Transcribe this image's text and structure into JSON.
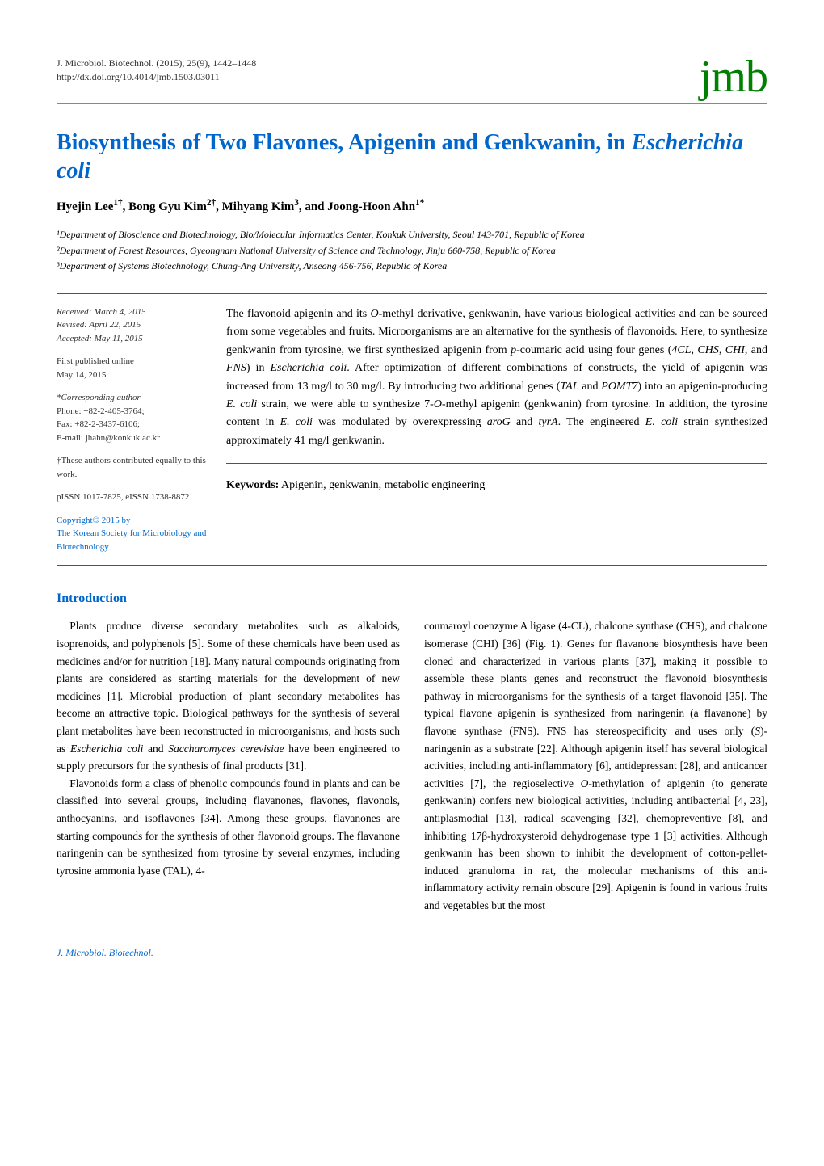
{
  "journal": {
    "citation": "J. Microbiol. Biotechnol. (2015), 25(9), 1442–1448",
    "doi": "http://dx.doi.org/10.4014/jmb.1503.03011",
    "logo_text": "jmb",
    "logo_color": "#008000"
  },
  "title_prefix": "Biosynthesis of Two Flavones, Apigenin and Genkwanin, in ",
  "title_italic": "Escherichia coli",
  "title_color": "#0066cc",
  "authors_html": "Hyejin Lee<sup>1†</sup>, Bong Gyu Kim<sup>2†</sup>, Mihyang Kim<sup>3</sup>, and Joong-Hoon Ahn<sup>1*</sup>",
  "affiliations": [
    "¹Department of Bioscience and Biotechnology, Bio/Molecular Informatics Center, Konkuk University, Seoul 143-701, Republic of Korea",
    "²Department of Forest Resources, Gyeongnam National University of Science and Technology, Jinju 660-758, Republic of Korea",
    "³Department of Systems Biotechnology, Chung-Ang University, Anseong 456-756, Republic of Korea"
  ],
  "meta": {
    "received": "Received: March 4, 2015",
    "revised": "Revised: April 22, 2015",
    "accepted": "Accepted: May 11, 2015",
    "first_published_label": "First published online",
    "first_published_date": "May 14, 2015",
    "corresponding_label": "*Corresponding author",
    "phone": "Phone: +82-2-405-3764;",
    "fax": "Fax: +82-2-3437-6106;",
    "email": "E-mail: jhahn@konkuk.ac.kr",
    "equal_contrib": "†These authors contributed equally to this work.",
    "issn": "pISSN 1017-7825, eISSN 1738-8872",
    "copyright_line1": "Copyright© 2015 by",
    "copyright_line2": "The Korean Society for Microbiology and Biotechnology"
  },
  "abstract_html": "The flavonoid apigenin and its <i>O</i>-methyl derivative, genkwanin, have various biological activities and can be sourced from some vegetables and fruits. Microorganisms are an alternative for the synthesis of flavonoids. Here, to synthesize genkwanin from tyrosine, we first synthesized apigenin from <i>p</i>-coumaric acid using four genes (<i>4CL</i>, <i>CHS</i>, <i>CHI</i>, and <i>FNS</i>) in <i>Escherichia coli</i>. After optimization of different combinations of constructs, the yield of apigenin was increased from 13 mg/l to 30 mg/l. By introducing two additional genes (<i>TAL</i> and <i>POMT7</i>) into an apigenin-producing <i>E. coli</i> strain, we were able to synthesize 7-<i>O</i>-methyl apigenin (genkwanin) from tyrosine. In addition, the tyrosine content in <i>E. coli</i> was modulated by overexpressing <i>aroG</i> and <i>tyrA</i>. The engineered <i>E. coli</i> strain synthesized approximately 41 mg/l genkwanin.",
  "keywords_label": "Keywords:",
  "keywords_text": " Apigenin, genkwanin, metabolic engineering",
  "section_heading": "Introduction",
  "body_left_html": "<p>Plants produce diverse secondary metabolites such as alkaloids, isoprenoids, and polyphenols [5]. Some of these chemicals have been used as medicines and/or for nutrition [18]. Many natural compounds originating from plants are considered as starting materials for the development of new medicines [1]. Microbial production of plant secondary metabolites has become an attractive topic. Biological pathways for the synthesis of several plant metabolites have been reconstructed in microorganisms, and hosts such as <i>Escherichia coli</i> and <i>Saccharomyces cerevisiae</i> have been engineered to supply precursors for the synthesis of final products [31].</p><p>Flavonoids form a class of phenolic compounds found in plants and can be classified into several groups, including flavanones, flavones, flavonols, anthocyanins, and isoflavones [34]. Among these groups, flavanones are starting compounds for the synthesis of other flavonoid groups. The flavanone naringenin can be synthesized from tyrosine by several enzymes, including tyrosine ammonia lyase (TAL), 4-</p>",
  "body_right_html": "<p style='text-indent:0'>coumaroyl coenzyme A ligase (4-CL), chalcone synthase (CHS), and chalcone isomerase (CHI) [36] (Fig. 1). Genes for flavanone biosynthesis have been cloned and characterized in various plants [37], making it possible to assemble these plants genes and reconstruct the flavonoid biosynthesis pathway in microorganisms for the synthesis of a target flavonoid [35]. The typical flavone apigenin is synthesized from naringenin (a flavanone) by flavone synthase (FNS). FNS has stereospecificity and uses only (<i>S</i>)-naringenin as a substrate [22]. Although apigenin itself has several biological activities, including anti-inflammatory [6], antidepressant [28], and anticancer activities [7], the regioselective <i>O</i>-methylation of apigenin (to generate genkwanin) confers new biological activities, including antibacterial [4, 23], antiplasmodial [13], radical scavenging [32], chemopreventive [8], and inhibiting 17β-hydroxysteroid dehydrogenase type 1 [3] activities. Although genkwanin has been shown to inhibit the development of cotton-pellet-induced granuloma in rat, the molecular mechanisms of this anti-inflammatory activity remain obscure [29]. Apigenin is found in various fruits and vegetables but the most</p>",
  "footer_text": "J. Microbiol. Biotechnol.",
  "colors": {
    "accent": "#0066cc",
    "logo": "#008000",
    "text": "#000000",
    "background": "#ffffff",
    "rule_gray": "#888888"
  }
}
